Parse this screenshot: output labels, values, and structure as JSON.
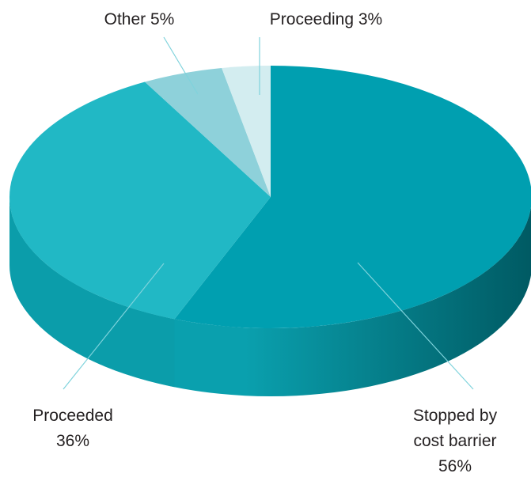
{
  "chart_data": {
    "type": "pie",
    "style": "3d",
    "slices": [
      {
        "label": "Stopped by cost barrier",
        "value": 56,
        "display": [
          "Stopped by",
          "cost barrier",
          "56%"
        ],
        "color": "#009fb0"
      },
      {
        "label": "Proceeded",
        "value": 36,
        "display": [
          "Proceeded",
          "36%"
        ],
        "color": "#21b8c5"
      },
      {
        "label": "Other",
        "value": 5,
        "display": [
          "Other 5%"
        ],
        "color": "#8ed1da"
      },
      {
        "label": "Proceeding",
        "value": 3,
        "display": [
          "Proceeding 3%"
        ],
        "color": "#d3edf0"
      }
    ],
    "legend": "none"
  }
}
